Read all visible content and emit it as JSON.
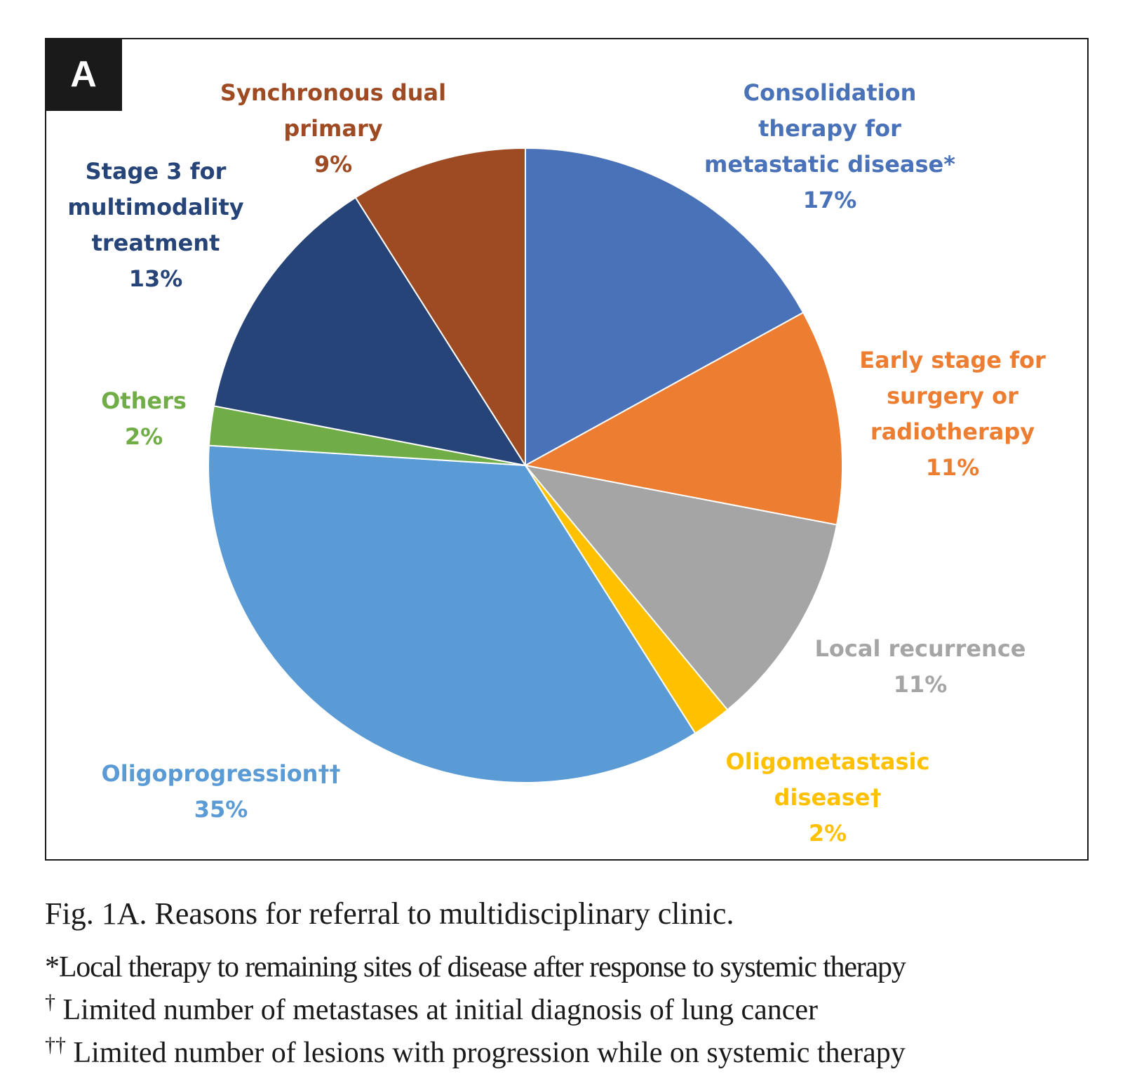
{
  "panel_label": "A",
  "chart_data": {
    "type": "pie",
    "unit": "%",
    "slices": [
      {
        "lines": [
          "Consolidation",
          "therapy for",
          "metastatic disease*",
          "17%"
        ],
        "value": 17,
        "color": "#4a72b8"
      },
      {
        "lines": [
          "Early stage for",
          "surgery or",
          "radiotherapy",
          "11%"
        ],
        "value": 11,
        "color": "#ed7d31"
      },
      {
        "lines": [
          "Local recurrence",
          "11%"
        ],
        "value": 11,
        "color": "#a5a5a5"
      },
      {
        "lines": [
          "Oligometastasic",
          "disease†",
          "2%"
        ],
        "value": 2,
        "color": "#ffc000"
      },
      {
        "lines": [
          "Oligoprogression††",
          "35%"
        ],
        "value": 35,
        "color": "#5b9bd5"
      },
      {
        "lines": [
          "Others",
          "2%"
        ],
        "value": 2,
        "color": "#70ad47"
      },
      {
        "lines": [
          "Stage 3 for",
          "multimodality",
          "treatment",
          "13%"
        ],
        "value": 13,
        "color": "#264478"
      },
      {
        "lines": [
          "Synchronous dual",
          "primary",
          "9%"
        ],
        "value": 9,
        "color": "#9e4a23"
      }
    ],
    "label_colors": [
      "#4a72b8",
      "#ed7d31",
      "#a5a5a5",
      "#ffc000",
      "#5b9bd5",
      "#70ad47",
      "#264478",
      "#9e4a23"
    ]
  },
  "caption": {
    "title": "Fig. 1A. Reasons for referral to multidisciplinary clinic.",
    "footnotes": [
      {
        "mark": "*",
        "text": "Local therapy to remaining sites of disease after response to systemic therapy"
      },
      {
        "mark": "†",
        "text": "Limited number of metastases at initial diagnosis of lung cancer"
      },
      {
        "mark": "††",
        "text": "Limited number of lesions with progression while on systemic therapy"
      }
    ]
  }
}
